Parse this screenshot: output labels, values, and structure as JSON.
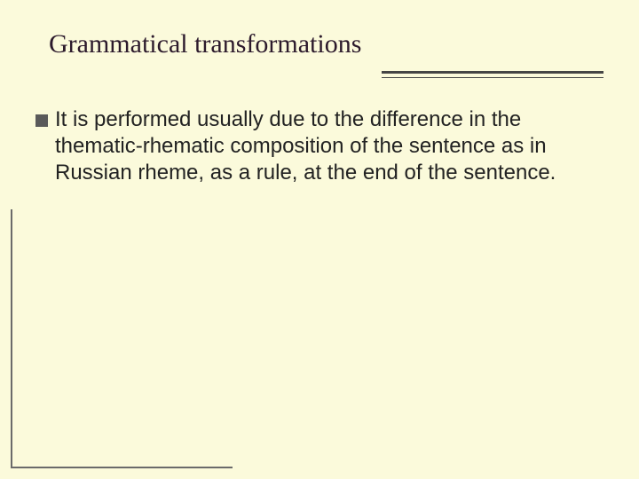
{
  "slide": {
    "background_color": "#fbfadb",
    "title": {
      "text": "Grammatical transformations",
      "font_family": "Palatino Linotype",
      "font_size_pt": 30,
      "color": "#2c1a2c",
      "rule_color": "#454545"
    },
    "body": {
      "bullet_color": "#5a5a5a",
      "font_family": "Arial",
      "font_size_pt": 24,
      "text_color": "#222222",
      "items": [
        "It is performed usually due to the difference in the thematic-rhematic composition of the sentence as in Russian rheme, as a rule, at the end of the sentence."
      ]
    },
    "corner_border_color": "#6a6a6a"
  }
}
